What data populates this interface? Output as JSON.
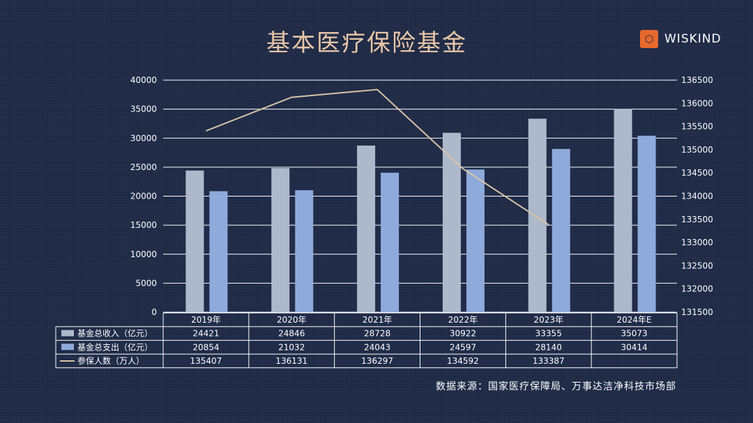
{
  "title": "基本医疗保险基金",
  "brand": {
    "name": "WISKIND",
    "logo_icon": "wiskind-logo-icon"
  },
  "source": "数据来源：国家医疗保障局、万事达洁净科技市场部",
  "colors": {
    "background": "#1f2b47",
    "income": "#adb9ca",
    "expense": "#8eaadb",
    "members": "#d9c3a5",
    "title": "#e8c6a6",
    "grid": "#ffffff"
  },
  "chart_data": {
    "type": "bar",
    "categories": [
      "2019年",
      "2020年",
      "2021年",
      "2022年",
      "2023年",
      "2024年E"
    ],
    "series": [
      {
        "name": "基金总收入（亿元）",
        "type": "bar",
        "axis": "left",
        "values": [
          24421,
          24846,
          28728,
          30922,
          33355,
          35073
        ]
      },
      {
        "name": "基金总支出（亿元）",
        "type": "bar",
        "axis": "left",
        "values": [
          20854,
          21032,
          24043,
          24597,
          28140,
          30414
        ]
      },
      {
        "name": "参保人数（万人）",
        "type": "line",
        "axis": "right",
        "values": [
          135407,
          136131,
          136297,
          134592,
          133387,
          null
        ]
      }
    ],
    "y_left": {
      "min": 0,
      "max": 40000,
      "step": 5000,
      "ticks": [
        "0",
        "5000",
        "10000",
        "15000",
        "20000",
        "25000",
        "30000",
        "35000",
        "40000"
      ]
    },
    "y_right": {
      "min": 131500,
      "max": 136500,
      "step": 500,
      "ticks": [
        "131500",
        "132000",
        "132500",
        "133000",
        "133500",
        "134000",
        "134500",
        "135000",
        "135500",
        "136000",
        "136500"
      ]
    },
    "grid": true,
    "legend": "data-table"
  }
}
